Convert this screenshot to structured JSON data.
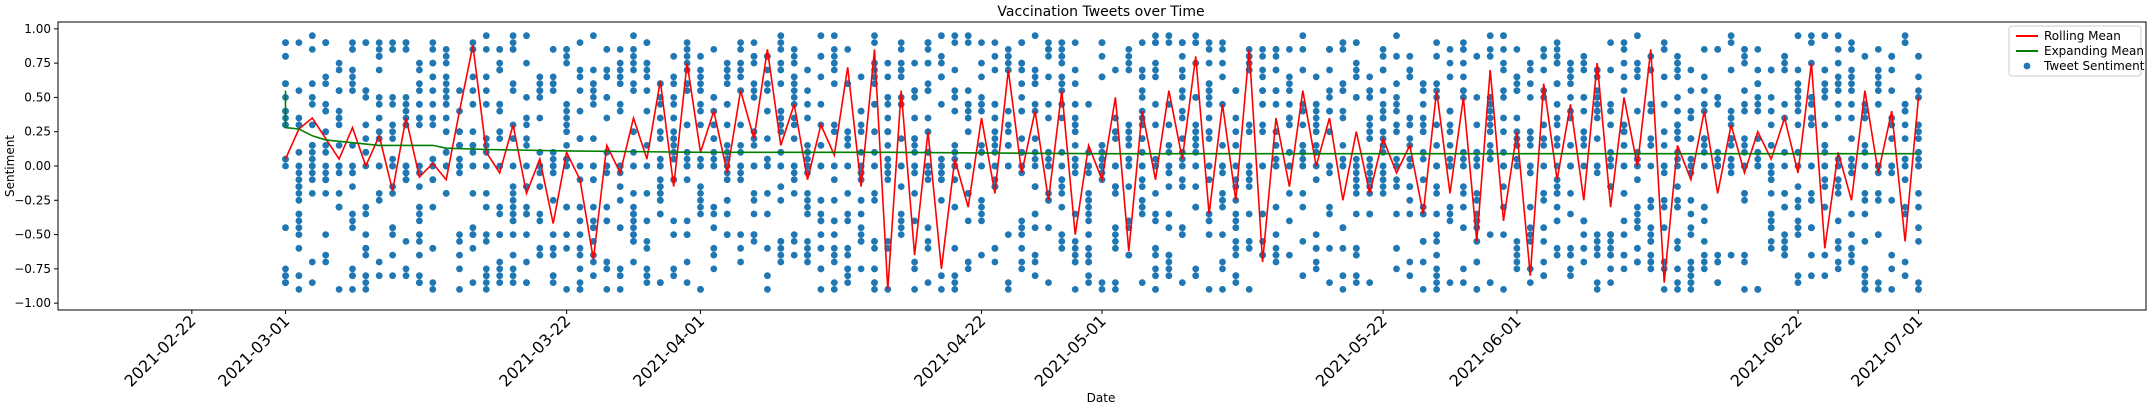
{
  "chart_data": {
    "type": "scatter",
    "title": "Vaccination Tweets over Time",
    "xlabel": "Date",
    "ylabel": "Sentiment",
    "xlim": [
      "2021-02-12",
      "2021-07-18"
    ],
    "ylim": [
      -1.05,
      1.05
    ],
    "yticks": [
      1.0,
      0.75,
      0.5,
      0.25,
      0.0,
      -0.25,
      -0.5,
      -0.75,
      -1.0
    ],
    "ytick_labels": [
      "1.00",
      "0.75",
      "0.50",
      "0.25",
      "0.00",
      "−0.25",
      "−0.50",
      "−0.75",
      "−1.00"
    ],
    "xticks": [
      "2021-02-22",
      "2021-03-01",
      "2021-03-22",
      "2021-04-01",
      "2021-04-22",
      "2021-05-01",
      "2021-05-22",
      "2021-06-01",
      "2021-06-22",
      "2021-07-01"
    ],
    "grid": false,
    "legend_position": "top-right",
    "series": [
      {
        "name": "Rolling Mean",
        "kind": "line",
        "color": "#ff0000",
        "points": [
          [
            "2021-03-01",
            0.05
          ],
          [
            "2021-03-02",
            0.27
          ],
          [
            "2021-03-03",
            0.35
          ],
          [
            "2021-03-04",
            0.2
          ],
          [
            "2021-03-05",
            0.05
          ],
          [
            "2021-03-06",
            0.28
          ],
          [
            "2021-03-07",
            0.0
          ],
          [
            "2021-03-08",
            0.22
          ],
          [
            "2021-03-09",
            -0.18
          ],
          [
            "2021-03-10",
            0.35
          ],
          [
            "2021-03-11",
            -0.08
          ],
          [
            "2021-03-12",
            0.02
          ],
          [
            "2021-03-13",
            -0.1
          ],
          [
            "2021-03-14",
            0.4
          ],
          [
            "2021-03-15",
            0.88
          ],
          [
            "2021-03-16",
            0.1
          ],
          [
            "2021-03-17",
            -0.05
          ],
          [
            "2021-03-18",
            0.3
          ],
          [
            "2021-03-19",
            -0.2
          ],
          [
            "2021-03-20",
            0.05
          ],
          [
            "2021-03-21",
            -0.42
          ],
          [
            "2021-03-22",
            0.1
          ],
          [
            "2021-03-23",
            -0.1
          ],
          [
            "2021-03-24",
            -0.68
          ],
          [
            "2021-03-25",
            0.15
          ],
          [
            "2021-03-26",
            -0.05
          ],
          [
            "2021-03-27",
            0.35
          ],
          [
            "2021-03-28",
            0.05
          ],
          [
            "2021-03-29",
            0.62
          ],
          [
            "2021-03-30",
            -0.15
          ],
          [
            "2021-03-31",
            0.75
          ],
          [
            "2021-04-01",
            0.1
          ],
          [
            "2021-04-02",
            0.4
          ],
          [
            "2021-04-03",
            -0.05
          ],
          [
            "2021-04-04",
            0.55
          ],
          [
            "2021-04-05",
            0.2
          ],
          [
            "2021-04-06",
            0.85
          ],
          [
            "2021-04-07",
            0.15
          ],
          [
            "2021-04-08",
            0.45
          ],
          [
            "2021-04-09",
            -0.1
          ],
          [
            "2021-04-10",
            0.3
          ],
          [
            "2021-04-11",
            0.08
          ],
          [
            "2021-04-12",
            0.72
          ],
          [
            "2021-04-13",
            -0.15
          ],
          [
            "2021-04-14",
            0.85
          ],
          [
            "2021-04-15",
            -0.9
          ],
          [
            "2021-04-16",
            0.55
          ],
          [
            "2021-04-17",
            -0.65
          ],
          [
            "2021-04-18",
            0.25
          ],
          [
            "2021-04-19",
            -0.75
          ],
          [
            "2021-04-20",
            0.05
          ],
          [
            "2021-04-21",
            -0.3
          ],
          [
            "2021-04-22",
            0.35
          ],
          [
            "2021-04-23",
            -0.2
          ],
          [
            "2021-04-24",
            0.7
          ],
          [
            "2021-04-25",
            -0.05
          ],
          [
            "2021-04-26",
            0.4
          ],
          [
            "2021-04-27",
            -0.25
          ],
          [
            "2021-04-28",
            0.55
          ],
          [
            "2021-04-29",
            -0.5
          ],
          [
            "2021-04-30",
            0.15
          ],
          [
            "2021-05-01",
            -0.1
          ],
          [
            "2021-05-02",
            0.5
          ],
          [
            "2021-05-03",
            -0.62
          ],
          [
            "2021-05-04",
            0.4
          ],
          [
            "2021-05-05",
            -0.1
          ],
          [
            "2021-05-06",
            0.55
          ],
          [
            "2021-05-07",
            0.05
          ],
          [
            "2021-05-08",
            0.8
          ],
          [
            "2021-05-09",
            -0.35
          ],
          [
            "2021-05-10",
            0.45
          ],
          [
            "2021-05-11",
            -0.25
          ],
          [
            "2021-05-12",
            0.85
          ],
          [
            "2021-05-13",
            -0.7
          ],
          [
            "2021-05-14",
            0.35
          ],
          [
            "2021-05-15",
            -0.15
          ],
          [
            "2021-05-16",
            0.55
          ],
          [
            "2021-05-17",
            0.0
          ],
          [
            "2021-05-18",
            0.35
          ],
          [
            "2021-05-19",
            -0.25
          ],
          [
            "2021-05-20",
            0.25
          ],
          [
            "2021-05-21",
            -0.2
          ],
          [
            "2021-05-22",
            0.2
          ],
          [
            "2021-05-23",
            -0.05
          ],
          [
            "2021-05-24",
            0.15
          ],
          [
            "2021-05-25",
            -0.35
          ],
          [
            "2021-05-26",
            0.55
          ],
          [
            "2021-05-27",
            -0.2
          ],
          [
            "2021-05-28",
            0.5
          ],
          [
            "2021-05-29",
            -0.55
          ],
          [
            "2021-05-30",
            0.7
          ],
          [
            "2021-05-31",
            -0.4
          ],
          [
            "2021-06-01",
            0.25
          ],
          [
            "2021-06-02",
            -0.8
          ],
          [
            "2021-06-03",
            0.6
          ],
          [
            "2021-06-04",
            -0.1
          ],
          [
            "2021-06-05",
            0.45
          ],
          [
            "2021-06-06",
            -0.25
          ],
          [
            "2021-06-07",
            0.75
          ],
          [
            "2021-06-08",
            -0.3
          ],
          [
            "2021-06-09",
            0.5
          ],
          [
            "2021-06-10",
            0.0
          ],
          [
            "2021-06-11",
            0.85
          ],
          [
            "2021-06-12",
            -0.85
          ],
          [
            "2021-06-13",
            0.15
          ],
          [
            "2021-06-14",
            -0.1
          ],
          [
            "2021-06-15",
            0.4
          ],
          [
            "2021-06-16",
            -0.2
          ],
          [
            "2021-06-17",
            0.3
          ],
          [
            "2021-06-18",
            -0.05
          ],
          [
            "2021-06-19",
            0.25
          ],
          [
            "2021-06-20",
            0.05
          ],
          [
            "2021-06-21",
            0.35
          ],
          [
            "2021-06-22",
            -0.05
          ],
          [
            "2021-06-23",
            0.75
          ],
          [
            "2021-06-24",
            -0.6
          ],
          [
            "2021-06-25",
            0.1
          ],
          [
            "2021-06-26",
            -0.25
          ],
          [
            "2021-06-27",
            0.55
          ],
          [
            "2021-06-28",
            -0.05
          ],
          [
            "2021-06-29",
            0.4
          ],
          [
            "2021-06-30",
            -0.55
          ],
          [
            "2021-07-01",
            0.5
          ]
        ]
      },
      {
        "name": "Expanding Mean",
        "kind": "line",
        "color": "#008000",
        "points": [
          [
            "2021-03-01",
            0.55
          ],
          [
            "2021-03-01",
            0.28
          ],
          [
            "2021-03-02",
            0.27
          ],
          [
            "2021-03-03",
            0.22
          ],
          [
            "2021-03-04",
            0.19
          ],
          [
            "2021-03-06",
            0.17
          ],
          [
            "2021-03-08",
            0.15
          ],
          [
            "2021-03-12",
            0.15
          ],
          [
            "2021-03-13",
            0.13
          ],
          [
            "2021-03-16",
            0.12
          ],
          [
            "2021-03-22",
            0.11
          ],
          [
            "2021-04-01",
            0.1
          ],
          [
            "2021-04-15",
            0.1
          ],
          [
            "2021-05-01",
            0.09
          ],
          [
            "2021-05-22",
            0.09
          ],
          [
            "2021-06-01",
            0.09
          ],
          [
            "2021-06-22",
            0.09
          ],
          [
            "2021-07-01",
            0.09
          ]
        ]
      },
      {
        "name": "Tweet Sentiment",
        "kind": "scatter",
        "color": "#1f77b4",
        "count": 2600,
        "distribution": "dense stacks of points per day between -0.95 and 0.95, heaviest at 0.00"
      }
    ]
  }
}
